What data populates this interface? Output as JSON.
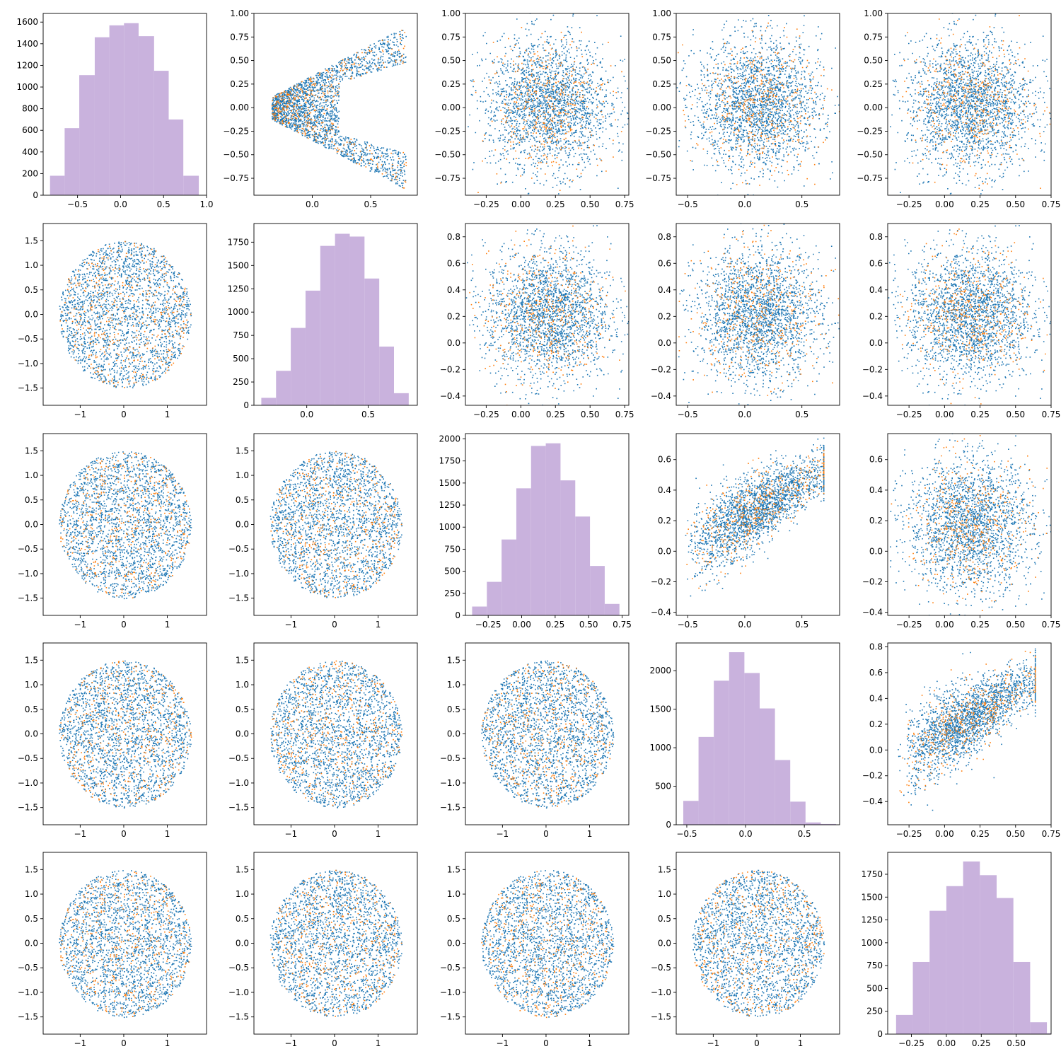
{
  "figure": {
    "rows": 5,
    "cols": 5,
    "colors": {
      "hist": "#c9b2dd",
      "series_blue": "#1f77b4",
      "series_orange": "#ff7f0e",
      "axis": "#000000"
    }
  },
  "chart_data": [
    {
      "type": "bar",
      "row": 0,
      "col": 0,
      "categories": [
        "-0.82",
        "-0.65",
        "-0.48",
        "-0.30",
        "-0.13",
        "0.04",
        "0.21",
        "0.39",
        "0.56",
        "0.73"
      ],
      "values": [
        180,
        620,
        1110,
        1460,
        1570,
        1590,
        1470,
        1150,
        700,
        180
      ],
      "xlim": [
        -0.9,
        1.0
      ],
      "ylim": [
        0,
        1680
      ],
      "xticks": [
        -0.5,
        0.0,
        0.5,
        1.0
      ],
      "yticks": [
        0,
        200,
        400,
        600,
        800,
        1000,
        1200,
        1400,
        1600
      ],
      "bins": [
        -0.82,
        -0.65,
        -0.48,
        -0.3,
        -0.13,
        0.04,
        0.21,
        0.39,
        0.56,
        0.73,
        0.91
      ]
    },
    {
      "type": "scatter",
      "row": 0,
      "col": 1,
      "pattern": "chevron",
      "xlim": [
        -0.5,
        0.9
      ],
      "ylim": [
        -0.93,
        1.0
      ],
      "xticks": [
        0.0,
        0.5
      ],
      "yticks": [
        -0.75,
        -0.5,
        -0.25,
        0.0,
        0.25,
        0.5,
        0.75,
        1.0
      ]
    },
    {
      "type": "scatter",
      "row": 0,
      "col": 2,
      "pattern": "blob",
      "xlim": [
        -0.4,
        0.78
      ],
      "ylim": [
        -0.93,
        1.0
      ],
      "xticks": [
        -0.25,
        0.0,
        0.25,
        0.5,
        0.75
      ],
      "yticks": [
        -0.75,
        -0.5,
        -0.25,
        0.0,
        0.25,
        0.5,
        0.75,
        1.0
      ]
    },
    {
      "type": "scatter",
      "row": 0,
      "col": 3,
      "pattern": "blob",
      "xlim": [
        -0.6,
        0.83
      ],
      "ylim": [
        -0.93,
        1.0
      ],
      "xticks": [
        -0.5,
        0.0,
        0.5
      ],
      "yticks": [
        -0.75,
        -0.5,
        -0.25,
        0.0,
        0.25,
        0.5,
        0.75,
        1.0
      ]
    },
    {
      "type": "scatter",
      "row": 0,
      "col": 4,
      "pattern": "blob",
      "xlim": [
        -0.4,
        0.75
      ],
      "ylim": [
        -0.93,
        1.0
      ],
      "xticks": [
        -0.25,
        0.0,
        0.25,
        0.5,
        0.75
      ],
      "yticks": [
        -0.75,
        -0.5,
        -0.25,
        0.0,
        0.25,
        0.5,
        0.75,
        1.0
      ]
    },
    {
      "type": "scatter",
      "row": 1,
      "col": 0,
      "pattern": "disk",
      "xlim": [
        -1.85,
        1.9
      ],
      "ylim": [
        -1.85,
        1.85
      ],
      "xticks": [
        -1,
        0,
        1
      ],
      "yticks": [
        -1.5,
        -1.0,
        -0.5,
        0.0,
        0.5,
        1.0,
        1.5
      ]
    },
    {
      "type": "bar",
      "row": 1,
      "col": 1,
      "categories": [
        "-0.37",
        "-0.25",
        "-0.13",
        "-0.01",
        "0.11",
        "0.23",
        "0.35",
        "0.47",
        "0.59",
        "0.71"
      ],
      "values": [
        80,
        370,
        830,
        1230,
        1710,
        1840,
        1810,
        1360,
        630,
        130
      ],
      "xlim": [
        -0.43,
        0.9
      ],
      "ylim": [
        0,
        1950
      ],
      "xticks": [
        0.0,
        0.5
      ],
      "yticks": [
        0,
        250,
        500,
        750,
        1000,
        1250,
        1500,
        1750
      ],
      "bins": [
        -0.37,
        -0.25,
        -0.13,
        -0.01,
        0.11,
        0.23,
        0.35,
        0.47,
        0.59,
        0.71,
        0.83
      ]
    },
    {
      "type": "scatter",
      "row": 1,
      "col": 2,
      "pattern": "blob",
      "xlim": [
        -0.4,
        0.78
      ],
      "ylim": [
        -0.47,
        0.9
      ],
      "xticks": [
        -0.25,
        0.0,
        0.25,
        0.5,
        0.75
      ],
      "yticks": [
        -0.4,
        -0.2,
        0.0,
        0.2,
        0.4,
        0.6,
        0.8
      ]
    },
    {
      "type": "scatter",
      "row": 1,
      "col": 3,
      "pattern": "blob",
      "xlim": [
        -0.6,
        0.83
      ],
      "ylim": [
        -0.47,
        0.9
      ],
      "xticks": [
        -0.5,
        0.0,
        0.5
      ],
      "yticks": [
        -0.4,
        -0.2,
        0.0,
        0.2,
        0.4,
        0.6,
        0.8
      ]
    },
    {
      "type": "scatter",
      "row": 1,
      "col": 4,
      "pattern": "blob",
      "xlim": [
        -0.4,
        0.75
      ],
      "ylim": [
        -0.47,
        0.9
      ],
      "xticks": [
        -0.25,
        0.0,
        0.25,
        0.5,
        0.75
      ],
      "yticks": [
        -0.4,
        -0.2,
        0.0,
        0.2,
        0.4,
        0.6,
        0.8
      ]
    },
    {
      "type": "scatter",
      "row": 2,
      "col": 0,
      "pattern": "disk",
      "xlim": [
        -1.85,
        1.9
      ],
      "ylim": [
        -1.85,
        1.85
      ],
      "xticks": [
        -1,
        0,
        1
      ],
      "yticks": [
        -1.5,
        -1.0,
        -0.5,
        0.0,
        0.5,
        1.0,
        1.5
      ]
    },
    {
      "type": "scatter",
      "row": 2,
      "col": 1,
      "pattern": "disk",
      "xlim": [
        -1.85,
        1.9
      ],
      "ylim": [
        -1.85,
        1.85
      ],
      "xticks": [
        -1,
        0,
        1
      ],
      "yticks": [
        -1.5,
        -1.0,
        -0.5,
        0.0,
        0.5,
        1.0,
        1.5
      ]
    },
    {
      "type": "bar",
      "row": 2,
      "col": 2,
      "categories": [
        "-0.37",
        "-0.26",
        "-0.15",
        "-0.04",
        "0.07",
        "0.18",
        "0.29",
        "0.40",
        "0.51",
        "0.62"
      ],
      "values": [
        100,
        380,
        860,
        1440,
        1920,
        1950,
        1530,
        1120,
        560,
        130
      ],
      "xlim": [
        -0.42,
        0.8
      ],
      "ylim": [
        0,
        2060
      ],
      "xticks": [
        -0.25,
        0.0,
        0.25,
        0.5,
        0.75
      ],
      "yticks": [
        0,
        250,
        500,
        750,
        1000,
        1250,
        1500,
        1750,
        2000
      ],
      "bins": [
        -0.37,
        -0.26,
        -0.15,
        -0.04,
        0.07,
        0.18,
        0.29,
        0.4,
        0.51,
        0.62,
        0.73
      ]
    },
    {
      "type": "scatter",
      "row": 2,
      "col": 3,
      "pattern": "wedge",
      "xlim": [
        -0.6,
        0.83
      ],
      "ylim": [
        -0.42,
        0.77
      ],
      "xticks": [
        -0.5,
        0.0,
        0.5
      ],
      "yticks": [
        -0.4,
        -0.2,
        0.0,
        0.2,
        0.4,
        0.6
      ]
    },
    {
      "type": "scatter",
      "row": 2,
      "col": 4,
      "pattern": "blob",
      "xlim": [
        -0.4,
        0.75
      ],
      "ylim": [
        -0.42,
        0.77
      ],
      "xticks": [
        -0.25,
        0.0,
        0.25,
        0.5,
        0.75
      ],
      "yticks": [
        -0.4,
        -0.2,
        0.0,
        0.2,
        0.4,
        0.6
      ]
    },
    {
      "type": "scatter",
      "row": 3,
      "col": 0,
      "pattern": "disk",
      "xlim": [
        -1.85,
        1.9
      ],
      "ylim": [
        -1.85,
        1.85
      ],
      "xticks": [
        -1,
        0,
        1
      ],
      "yticks": [
        -1.5,
        -1.0,
        -0.5,
        0.0,
        0.5,
        1.0,
        1.5
      ]
    },
    {
      "type": "scatter",
      "row": 3,
      "col": 1,
      "pattern": "disk",
      "xlim": [
        -1.85,
        1.9
      ],
      "ylim": [
        -1.85,
        1.85
      ],
      "xticks": [
        -1,
        0,
        1
      ],
      "yticks": [
        -1.5,
        -1.0,
        -0.5,
        0.0,
        0.5,
        1.0,
        1.5
      ]
    },
    {
      "type": "scatter",
      "row": 3,
      "col": 2,
      "pattern": "disk",
      "xlim": [
        -1.85,
        1.9
      ],
      "ylim": [
        -1.85,
        1.85
      ],
      "xticks": [
        -1,
        0,
        1
      ],
      "yticks": [
        -1.5,
        -1.0,
        -0.5,
        0.0,
        0.5,
        1.0,
        1.5
      ]
    },
    {
      "type": "bar",
      "row": 3,
      "col": 3,
      "categories": [
        "-0.53",
        "-0.40",
        "-0.27",
        "-0.14",
        "-0.01",
        "0.12",
        "0.25",
        "0.38",
        "0.51",
        "0.64"
      ],
      "values": [
        310,
        1140,
        1870,
        2240,
        1970,
        1510,
        840,
        300,
        30,
        10
      ],
      "xlim": [
        -0.59,
        0.8
      ],
      "ylim": [
        0,
        2360
      ],
      "xticks": [
        -0.5,
        0.0,
        0.5
      ],
      "yticks": [
        0,
        500,
        1000,
        1500,
        2000
      ],
      "bins": [
        -0.53,
        -0.4,
        -0.27,
        -0.14,
        -0.01,
        0.12,
        0.25,
        0.38,
        0.51,
        0.64,
        0.77
      ]
    },
    {
      "type": "scatter",
      "row": 3,
      "col": 4,
      "pattern": "wedge2",
      "xlim": [
        -0.4,
        0.75
      ],
      "ylim": [
        -0.58,
        0.83
      ],
      "xticks": [
        -0.25,
        0.0,
        0.25,
        0.5,
        0.75
      ],
      "yticks": [
        -0.4,
        -0.2,
        0.0,
        0.2,
        0.4,
        0.6,
        0.8
      ]
    },
    {
      "type": "scatter",
      "row": 4,
      "col": 0,
      "pattern": "disk",
      "xlim": [
        -1.85,
        1.9
      ],
      "ylim": [
        -1.85,
        1.85
      ],
      "xticks": [
        -1,
        0,
        1
      ],
      "yticks": [
        -1.5,
        -1.0,
        -0.5,
        0.0,
        0.5,
        1.0,
        1.5
      ]
    },
    {
      "type": "scatter",
      "row": 4,
      "col": 1,
      "pattern": "disk",
      "xlim": [
        -1.85,
        1.9
      ],
      "ylim": [
        -1.85,
        1.85
      ],
      "xticks": [
        -1,
        0,
        1
      ],
      "yticks": [
        -1.5,
        -1.0,
        -0.5,
        0.0,
        0.5,
        1.0,
        1.5
      ]
    },
    {
      "type": "scatter",
      "row": 4,
      "col": 2,
      "pattern": "disk",
      "xlim": [
        -1.85,
        1.9
      ],
      "ylim": [
        -1.85,
        1.85
      ],
      "xticks": [
        -1,
        0,
        1
      ],
      "yticks": [
        -1.5,
        -1.0,
        -0.5,
        0.0,
        0.5,
        1.0,
        1.5
      ]
    },
    {
      "type": "scatter",
      "row": 4,
      "col": 3,
      "pattern": "disk",
      "xlim": [
        -1.85,
        1.9
      ],
      "ylim": [
        -1.85,
        1.85
      ],
      "xticks": [
        -1,
        0,
        1
      ],
      "yticks": [
        -1.5,
        -1.0,
        -0.5,
        0.0,
        0.5,
        1.0,
        1.5
      ]
    },
    {
      "type": "bar",
      "row": 4,
      "col": 4,
      "categories": [
        "-0.36",
        "-0.24",
        "-0.12",
        "0.00",
        "0.12",
        "0.24",
        "0.36",
        "0.48",
        "0.60",
        "0.72"
      ],
      "values": [
        210,
        790,
        1350,
        1620,
        1890,
        1740,
        1490,
        790,
        130,
        10
      ],
      "xlim": [
        -0.42,
        0.75
      ],
      "ylim": [
        0,
        1990
      ],
      "xticks": [
        -0.25,
        0.0,
        0.25,
        0.5
      ],
      "yticks": [
        0,
        250,
        500,
        750,
        1000,
        1250,
        1500,
        1750
      ],
      "bins": [
        -0.36,
        -0.24,
        -0.12,
        0.0,
        0.12,
        0.24,
        0.36,
        0.48,
        0.6,
        0.72,
        0.84
      ]
    }
  ]
}
